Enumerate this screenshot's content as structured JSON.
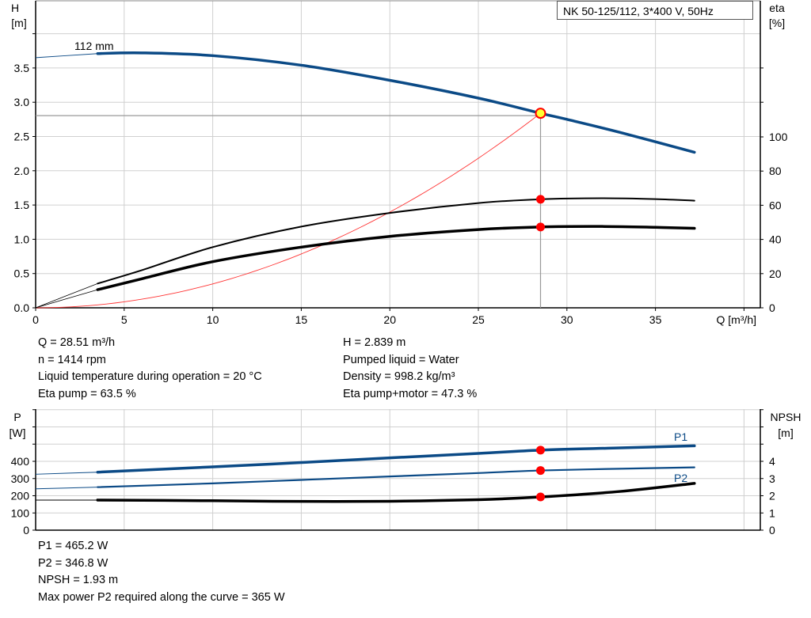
{
  "title": "NK 50-125/112, 3*400 V, 50Hz",
  "colors": {
    "head": "#0b4a86",
    "eta": "#000000",
    "system": "#ff3333",
    "op_point": "#ff0000",
    "op_fill": "#ffff33",
    "grid": "#d0d0d0"
  },
  "chart_data": [
    {
      "type": "line",
      "name": "head-efficiency",
      "xlabel": "Q [m³/h]",
      "ylabel": "H",
      "ylabel_unit": "[m]",
      "y2label": "eta",
      "y2label_unit": "[%]",
      "xlim": [
        0,
        40
      ],
      "ylim": [
        0,
        4.0
      ],
      "y2lim": [
        0,
        100
      ],
      "xticks": [
        "0",
        "5",
        "10",
        "15",
        "20",
        "25",
        "30",
        "35"
      ],
      "yticks": [
        "0.0",
        "0.5",
        "1.0",
        "1.5",
        "2.0",
        "2.5",
        "3.0",
        "3.5"
      ],
      "y2ticks": [
        "0",
        "20",
        "40",
        "60",
        "80",
        "100"
      ],
      "grid": true,
      "curve_label": "112 mm",
      "series": [
        {
          "key": "head",
          "axis": "y",
          "points": [
            [
              0,
              3.65
            ],
            [
              3.5,
              3.71
            ],
            [
              6,
              3.72
            ],
            [
              10,
              3.68
            ],
            [
              15,
              3.54
            ],
            [
              20,
              3.32
            ],
            [
              25,
              3.06
            ],
            [
              28.51,
              2.839
            ],
            [
              30,
              2.75
            ],
            [
              33,
              2.56
            ],
            [
              37.2,
              2.27
            ]
          ],
          "valid_from": 3.5
        },
        {
          "key": "eta_pump",
          "axis": "y2",
          "points": [
            [
              0,
              0
            ],
            [
              3.5,
              14.2
            ],
            [
              6,
              22
            ],
            [
              10,
              35.5
            ],
            [
              15,
              47.5
            ],
            [
              20,
              55.5
            ],
            [
              25,
              61.3
            ],
            [
              28.51,
              63.5
            ],
            [
              32,
              64.1
            ],
            [
              35,
              63.6
            ],
            [
              37.2,
              62.7
            ]
          ],
          "valid_from": 3.5
        },
        {
          "key": "eta_pump_motor",
          "axis": "y2",
          "points": [
            [
              0,
              0
            ],
            [
              3.5,
              10.6
            ],
            [
              6,
              17
            ],
            [
              10,
              27
            ],
            [
              15,
              35.5
            ],
            [
              20,
              41.8
            ],
            [
              25,
              45.8
            ],
            [
              28.51,
              47.3
            ],
            [
              32,
              47.6
            ],
            [
              35,
              47.1
            ],
            [
              37.2,
              46.5
            ]
          ],
          "valid_from": 3.5
        },
        {
          "key": "system",
          "axis": "y",
          "quadratic_through": [
            28.51,
            2.839
          ]
        }
      ],
      "operating_point": {
        "Q": 28.51,
        "H": 2.839,
        "eta_pump": 63.5,
        "eta_pump_motor": 47.3
      }
    },
    {
      "type": "line",
      "name": "power-npsh",
      "ylabel": "P",
      "ylabel_unit": "[W]",
      "y2label": "NPSH",
      "y2label_unit": "[m]",
      "xlim": [
        0,
        40
      ],
      "ylim": [
        0,
        700
      ],
      "y2lim": [
        0,
        7
      ],
      "yticks": [
        "0",
        "100",
        "200",
        "300",
        "400"
      ],
      "y2ticks": [
        "0",
        "1",
        "2",
        "3",
        "4"
      ],
      "grid": true,
      "series": [
        {
          "key": "P1",
          "label": "P1",
          "axis": "y",
          "points": [
            [
              0,
              325
            ],
            [
              3.5,
              337
            ],
            [
              10,
              368
            ],
            [
              15,
              393
            ],
            [
              20,
              420
            ],
            [
              25,
              446
            ],
            [
              28.51,
              465.2
            ],
            [
              33,
              478
            ],
            [
              37.2,
              490
            ]
          ],
          "valid_from": 3.5
        },
        {
          "key": "P2",
          "label": "P2",
          "axis": "y",
          "points": [
            [
              0,
              240
            ],
            [
              3.5,
              250
            ],
            [
              10,
              272
            ],
            [
              15,
              292
            ],
            [
              20,
              312
            ],
            [
              25,
              332
            ],
            [
              28.51,
              346.8
            ],
            [
              33,
              357
            ],
            [
              37.2,
              365
            ]
          ],
          "valid_from": 3.5
        },
        {
          "key": "NPSH",
          "axis": "y2",
          "points": [
            [
              0,
              1.75
            ],
            [
              3.5,
              1.75
            ],
            [
              10,
              1.71
            ],
            [
              15,
              1.67
            ],
            [
              20,
              1.68
            ],
            [
              25,
              1.77
            ],
            [
              28.51,
              1.93
            ],
            [
              33,
              2.25
            ],
            [
              37.2,
              2.72
            ]
          ],
          "valid_from": 3.5
        }
      ]
    }
  ],
  "results_top": {
    "left": [
      "Q = 28.51 m³/h",
      "n = 1414 rpm",
      "Liquid temperature during operation = 20 °C",
      "Eta pump = 63.5 %"
    ],
    "right": [
      "H = 2.839 m",
      "Pumped liquid = Water",
      "Density = 998.2 kg/m³",
      "Eta pump+motor = 47.3 %"
    ]
  },
  "results_bottom": [
    "P1 = 465.2 W",
    "P2 = 346.8 W",
    "NPSH = 1.93 m",
    "Max power P2 required along the curve = 365 W"
  ]
}
